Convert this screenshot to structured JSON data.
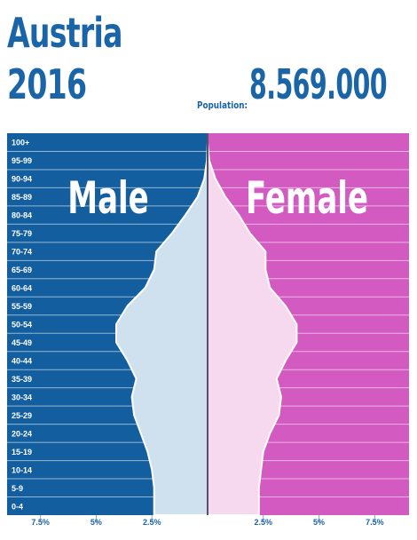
{
  "header": {
    "country": "Austria",
    "year": "2016",
    "population_label": "Population:",
    "population_value": "8.569.000"
  },
  "colors": {
    "male_bg": "#135e9e",
    "female_bg": "#d25ac0",
    "male_area": "#cfe1ee",
    "female_area": "#f6d9ef",
    "title": "#1a64a8"
  },
  "chart_data": {
    "type": "bar",
    "title": "",
    "xlabel": "",
    "ylabel": "",
    "xlim": [
      -9,
      9
    ],
    "categories": [
      "0-4",
      "5-9",
      "10-14",
      "15-19",
      "20-24",
      "25-29",
      "30-34",
      "35-39",
      "40-44",
      "45-49",
      "50-54",
      "55-59",
      "60-64",
      "65-69",
      "70-74",
      "75-79",
      "80-84",
      "85-89",
      "90-94",
      "95-99",
      "100+"
    ],
    "series": [
      {
        "name": "Male",
        "values": [
          2.4,
          2.4,
          2.5,
          2.7,
          3.0,
          3.3,
          3.4,
          3.2,
          3.6,
          4.1,
          4.1,
          3.6,
          2.8,
          2.4,
          2.3,
          1.6,
          1.0,
          0.45,
          0.15,
          0.03,
          0.0
        ]
      },
      {
        "name": "Female",
        "values": [
          2.3,
          2.3,
          2.4,
          2.5,
          2.8,
          3.2,
          3.3,
          3.1,
          3.5,
          4.0,
          4.0,
          3.5,
          2.8,
          2.6,
          2.6,
          1.9,
          1.4,
          0.8,
          0.35,
          0.07,
          0.0
        ]
      }
    ],
    "x_ticks": [
      {
        "value": -7.5,
        "label": "7.5%"
      },
      {
        "value": -5,
        "label": "5%"
      },
      {
        "value": -2.5,
        "label": "2.5%"
      },
      {
        "value": 2.5,
        "label": "2.5%"
      },
      {
        "value": 5,
        "label": "5%"
      },
      {
        "value": 7.5,
        "label": "7.5%"
      }
    ],
    "side_labels": {
      "left": "Male",
      "right": "Female"
    },
    "grid": true
  }
}
